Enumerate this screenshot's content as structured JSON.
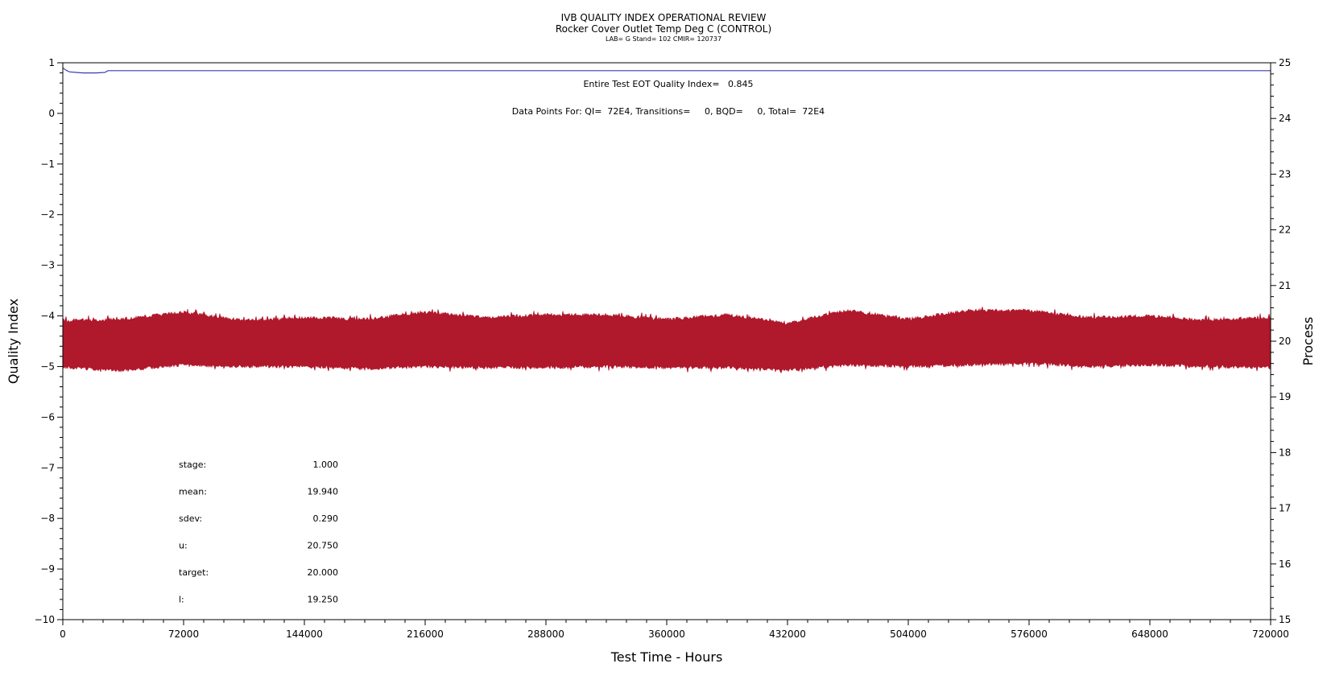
{
  "header": {
    "title": "IVB QUALITY INDEX OPERATIONAL REVIEW",
    "subtitle": "Rocker Cover Outlet Temp Deg C (CONTROL)",
    "info": "LAB= G Stand= 102 CMIR= 120737"
  },
  "annotations": {
    "eot_index": "Entire Test EOT Quality Index=   0.845",
    "data_points": "Data Points For: QI=  72E4, Transitions=     0, BQD=     0, Total=  72E4"
  },
  "stats": [
    {
      "label": "stage:",
      "value": "1.000"
    },
    {
      "label": "mean:",
      "value": "19.940"
    },
    {
      "label": "sdev:",
      "value": "0.290"
    },
    {
      "label": "u:",
      "value": "20.750"
    },
    {
      "label": "target:",
      "value": "20.000"
    },
    {
      "label": "l:",
      "value": "19.250"
    }
  ],
  "colors": {
    "quality_index": "#3a3ab8",
    "process": "#b0182c"
  },
  "chart_data": {
    "type": "line",
    "xlabel": "Test Time - Hours",
    "ylabel": "Quality Index",
    "y2label": "Process",
    "xlim": [
      0,
      720000
    ],
    "ylim": [
      -10,
      1
    ],
    "y2lim": [
      15,
      25
    ],
    "xticks": [
      0,
      72000,
      144000,
      216000,
      288000,
      360000,
      432000,
      504000,
      576000,
      648000,
      720000
    ],
    "yticks": [
      1,
      0,
      -1,
      -2,
      -3,
      -4,
      -5,
      -6,
      -7,
      -8,
      -9,
      -10
    ],
    "y2ticks": [
      25,
      24,
      23,
      22,
      21,
      20,
      19,
      18,
      17,
      16,
      15
    ],
    "series": [
      {
        "axis": "left",
        "x": [
          0,
          2000,
          4000,
          8000,
          12000,
          20000,
          25000,
          27000,
          720000
        ],
        "y": [
          0.9,
          0.85,
          0.82,
          0.81,
          0.8,
          0.8,
          0.81,
          0.845,
          0.845
        ]
      },
      {
        "axis": "right",
        "envelope_x": [
          0,
          36000,
          72000,
          108000,
          144000,
          180000,
          216000,
          252000,
          288000,
          324000,
          360000,
          396000,
          432000,
          468000,
          504000,
          540000,
          576000,
          612000,
          648000,
          684000,
          720000
        ],
        "upper": [
          20.4,
          20.42,
          20.55,
          20.4,
          20.45,
          20.42,
          20.55,
          20.45,
          20.5,
          20.5,
          20.42,
          20.5,
          20.35,
          20.58,
          20.42,
          20.58,
          20.58,
          20.45,
          20.48,
          20.4,
          20.45
        ],
        "lower": [
          19.5,
          19.45,
          19.55,
          19.52,
          19.52,
          19.48,
          19.52,
          19.5,
          19.5,
          19.52,
          19.5,
          19.5,
          19.45,
          19.55,
          19.52,
          19.55,
          19.58,
          19.52,
          19.55,
          19.52,
          19.5
        ]
      }
    ]
  }
}
